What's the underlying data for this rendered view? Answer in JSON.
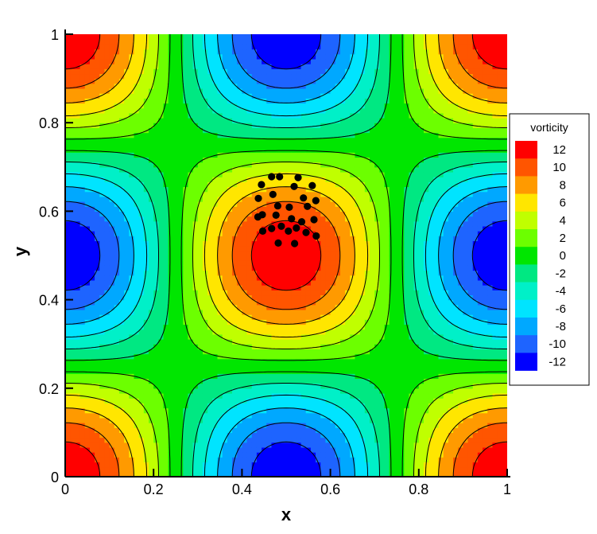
{
  "chart_data": {
    "type": "heatmap",
    "subtype": "filled-contour",
    "xlabel": "x",
    "ylabel": "y",
    "xlim": [
      0,
      1
    ],
    "ylim": [
      0,
      1
    ],
    "xticks": [
      "0",
      "0.2",
      "0.4",
      "0.6",
      "0.8",
      "1"
    ],
    "yticks": [
      "0",
      "0.2",
      "0.4",
      "0.6",
      "0.8",
      "1"
    ],
    "field": "vorticity",
    "field_max": 12.5,
    "field_pattern": "vorticity ≈ 12.5·sin(2πx)·sin(2πy) shifted by half a period (maxima at (0.5,0.5) and the corners, minima at edge midpoints)",
    "levels": [
      -12,
      -10,
      -8,
      -6,
      -4,
      -2,
      0,
      2,
      4,
      6,
      8,
      10,
      12
    ],
    "grid": false,
    "legend": {
      "title": "vorticity",
      "placement": "right",
      "labels": [
        "12",
        "10",
        "8",
        "6",
        "4",
        "2",
        "0",
        "-2",
        "-4",
        "-6",
        "-8",
        "-10",
        "-12"
      ],
      "colors": [
        "#ff0000",
        "#ff5500",
        "#ff9a00",
        "#ffe600",
        "#c0ff00",
        "#6cff00",
        "#00e600",
        "#00e882",
        "#00f0c8",
        "#00e4ff",
        "#00a8ff",
        "#1e64ff",
        "#0000ff"
      ]
    },
    "scatter": {
      "color": "#000000",
      "points": [
        {
          "x": 0.467,
          "y": 0.678
        },
        {
          "x": 0.485,
          "y": 0.678
        },
        {
          "x": 0.527,
          "y": 0.676
        },
        {
          "x": 0.444,
          "y": 0.66
        },
        {
          "x": 0.518,
          "y": 0.656
        },
        {
          "x": 0.559,
          "y": 0.658
        },
        {
          "x": 0.437,
          "y": 0.629
        },
        {
          "x": 0.47,
          "y": 0.638
        },
        {
          "x": 0.481,
          "y": 0.612
        },
        {
          "x": 0.539,
          "y": 0.63
        },
        {
          "x": 0.567,
          "y": 0.624
        },
        {
          "x": 0.446,
          "y": 0.592
        },
        {
          "x": 0.507,
          "y": 0.609
        },
        {
          "x": 0.548,
          "y": 0.611
        },
        {
          "x": 0.436,
          "y": 0.587
        },
        {
          "x": 0.477,
          "y": 0.591
        },
        {
          "x": 0.512,
          "y": 0.583
        },
        {
          "x": 0.535,
          "y": 0.576
        },
        {
          "x": 0.563,
          "y": 0.581
        },
        {
          "x": 0.447,
          "y": 0.555
        },
        {
          "x": 0.489,
          "y": 0.566
        },
        {
          "x": 0.523,
          "y": 0.562
        },
        {
          "x": 0.467,
          "y": 0.561
        },
        {
          "x": 0.505,
          "y": 0.555
        },
        {
          "x": 0.545,
          "y": 0.552
        },
        {
          "x": 0.568,
          "y": 0.544
        },
        {
          "x": 0.482,
          "y": 0.528
        },
        {
          "x": 0.519,
          "y": 0.527
        }
      ]
    }
  }
}
